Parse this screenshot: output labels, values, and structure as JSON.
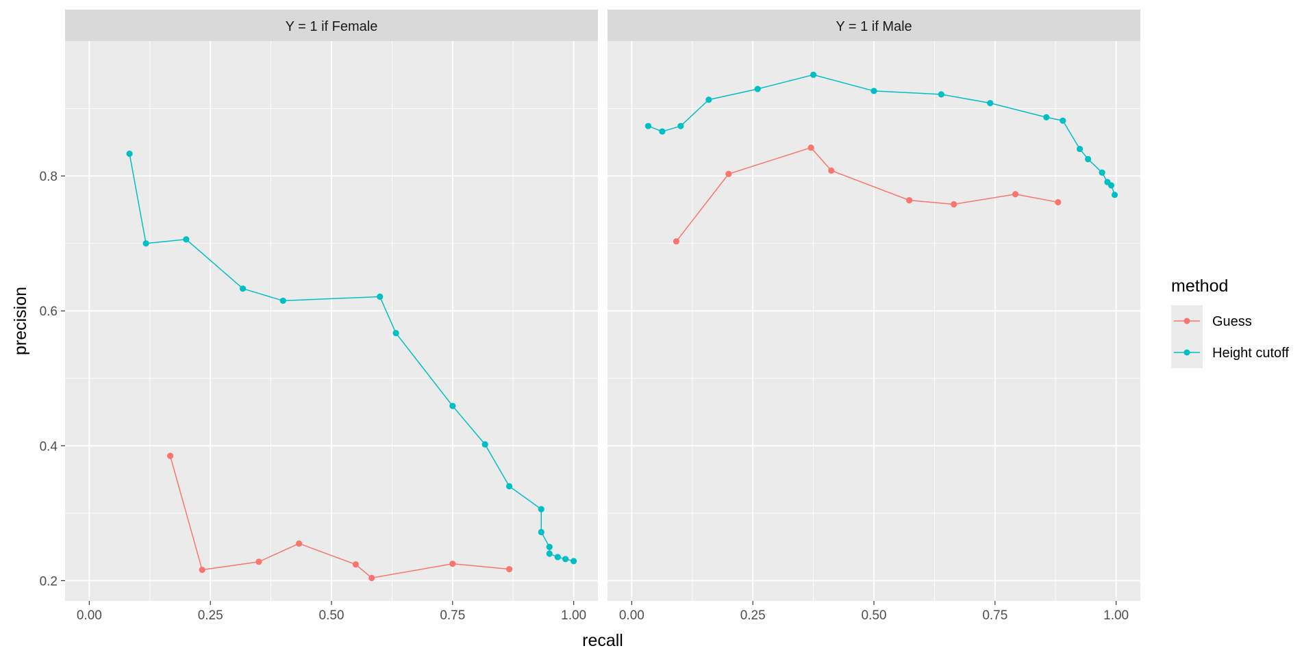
{
  "chart_data": {
    "type": "line",
    "xlabel": "recall",
    "ylabel": "precision",
    "xlim": [
      -0.05,
      1.05
    ],
    "ylim": [
      0.17,
      1.0
    ],
    "x_ticks": [
      0.0,
      0.25,
      0.5,
      0.75,
      1.0
    ],
    "x_tick_labels": [
      "0.00",
      "0.25",
      "0.50",
      "0.75",
      "1.00"
    ],
    "y_ticks": [
      0.2,
      0.4,
      0.6,
      0.8
    ],
    "y_tick_labels": [
      "0.2",
      "0.4",
      "0.6",
      "0.8"
    ],
    "grid": true,
    "legend": {
      "title": "method",
      "position": "right",
      "entries": [
        {
          "label": "Guess",
          "color": "#F8766D"
        },
        {
          "label": "Height cutoff",
          "color": "#00BFC4"
        }
      ]
    },
    "panels": [
      {
        "strip": "Y = 1 if Female",
        "series": [
          {
            "name": "Guess",
            "color": "#F8766D",
            "points": [
              [
                0.167,
                0.385
              ],
              [
                0.233,
                0.216
              ],
              [
                0.35,
                0.228
              ],
              [
                0.433,
                0.255
              ],
              [
                0.55,
                0.224
              ],
              [
                0.583,
                0.204
              ],
              [
                0.75,
                0.225
              ],
              [
                0.867,
                0.217
              ]
            ]
          },
          {
            "name": "Height cutoff",
            "color": "#00BFC4",
            "points": [
              [
                0.083,
                0.833
              ],
              [
                0.117,
                0.7
              ],
              [
                0.2,
                0.706
              ],
              [
                0.317,
                0.633
              ],
              [
                0.4,
                0.615
              ],
              [
                0.6,
                0.621
              ],
              [
                0.633,
                0.567
              ],
              [
                0.75,
                0.459
              ],
              [
                0.817,
                0.402
              ],
              [
                0.867,
                0.34
              ],
              [
                0.933,
                0.306
              ],
              [
                0.933,
                0.272
              ],
              [
                0.95,
                0.25
              ],
              [
                0.95,
                0.24
              ],
              [
                0.967,
                0.235
              ],
              [
                0.983,
                0.232
              ],
              [
                1.0,
                0.229
              ]
            ]
          }
        ]
      },
      {
        "strip": "Y = 1 if Male",
        "series": [
          {
            "name": "Guess",
            "color": "#F8766D",
            "points": [
              [
                0.092,
                0.703
              ],
              [
                0.2,
                0.803
              ],
              [
                0.37,
                0.842
              ],
              [
                0.412,
                0.808
              ],
              [
                0.573,
                0.764
              ],
              [
                0.665,
                0.758
              ],
              [
                0.792,
                0.773
              ],
              [
                0.88,
                0.761
              ]
            ]
          },
          {
            "name": "Height cutoff",
            "color": "#00BFC4",
            "points": [
              [
                0.034,
                0.874
              ],
              [
                0.063,
                0.866
              ],
              [
                0.101,
                0.874
              ],
              [
                0.159,
                0.913
              ],
              [
                0.26,
                0.929
              ],
              [
                0.375,
                0.95
              ],
              [
                0.5,
                0.926
              ],
              [
                0.639,
                0.921
              ],
              [
                0.74,
                0.908
              ],
              [
                0.856,
                0.887
              ],
              [
                0.89,
                0.882
              ],
              [
                0.925,
                0.84
              ],
              [
                0.942,
                0.825
              ],
              [
                0.971,
                0.805
              ],
              [
                0.982,
                0.791
              ],
              [
                0.99,
                0.786
              ],
              [
                0.997,
                0.772
              ]
            ]
          }
        ]
      }
    ]
  }
}
